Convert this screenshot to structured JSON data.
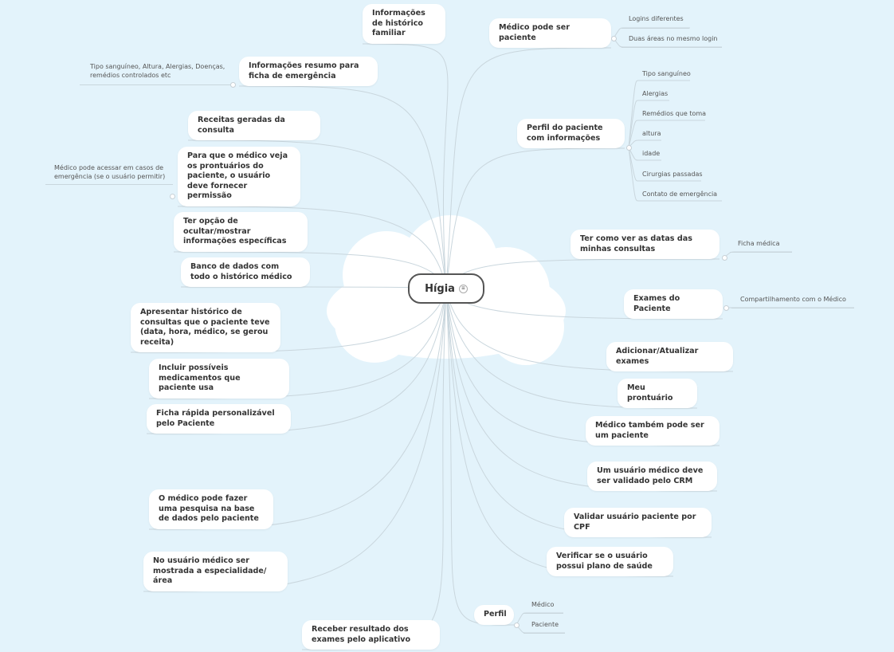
{
  "central_topic": "Hígia",
  "colors": {
    "background": "#e3f3fb",
    "line": "#c9d6dd",
    "node": "#ffffff",
    "text": "#333333"
  },
  "left_topics": [
    {
      "text": "Informações de histórico familiar"
    },
    {
      "text": "Informações resumo para ficha de emergência",
      "detail": "Tipo sanguíneo, Altura, Alergias, Doenças, remédios controlados etc"
    },
    {
      "text": "Receitas geradas da consulta"
    },
    {
      "text": "Para que o médico veja os prontuários do paciente, o usuário deve fornecer permissão",
      "detail": "Médico pode acessar em casos de emergência (se o usuário permitir)"
    },
    {
      "text": "Ter opção de ocultar/mostrar informações específicas"
    },
    {
      "text": "Banco de dados com todo o histórico médico"
    },
    {
      "text": "Apresentar histórico de consultas que o paciente teve (data, hora, médico, se gerou receita)"
    },
    {
      "text": "Incluir possíveis medicamentos que paciente usa"
    },
    {
      "text": "Ficha rápida personalizável pelo Paciente"
    },
    {
      "text": "O médico pode fazer uma pesquisa na base de dados pelo paciente"
    },
    {
      "text": "No usuário médico ser mostrada a especialidade/área"
    },
    {
      "text": "Receber resultado dos exames pelo aplicativo"
    }
  ],
  "right_topics": [
    {
      "text": "Médico pode ser paciente",
      "children": [
        "Logins diferentes",
        "Duas áreas no mesmo login"
      ]
    },
    {
      "text": "Perfil do paciente com informações",
      "children": [
        "Tipo sanguíneo",
        "Alergias",
        "Remédios que toma",
        "altura",
        "idade",
        "Cirurgias passadas",
        "Contato de emergência"
      ]
    },
    {
      "text": "Ter como ver as datas das minhas consultas",
      "children": [
        "Ficha médica"
      ]
    },
    {
      "text": "Exames do Paciente",
      "children": [
        "Compartilhamento com o Médico"
      ]
    },
    {
      "text": "Adicionar/Atualizar exames"
    },
    {
      "text": "Meu prontuário"
    },
    {
      "text": "Médico também pode ser um paciente"
    },
    {
      "text": "Um usuário médico deve ser validado pelo CRM"
    },
    {
      "text": "Validar usuário paciente por CPF"
    },
    {
      "text": "Verificar se o usuário possui plano de saúde"
    },
    {
      "text": "Perfil",
      "children": [
        "Médico",
        "Paciente"
      ]
    }
  ]
}
